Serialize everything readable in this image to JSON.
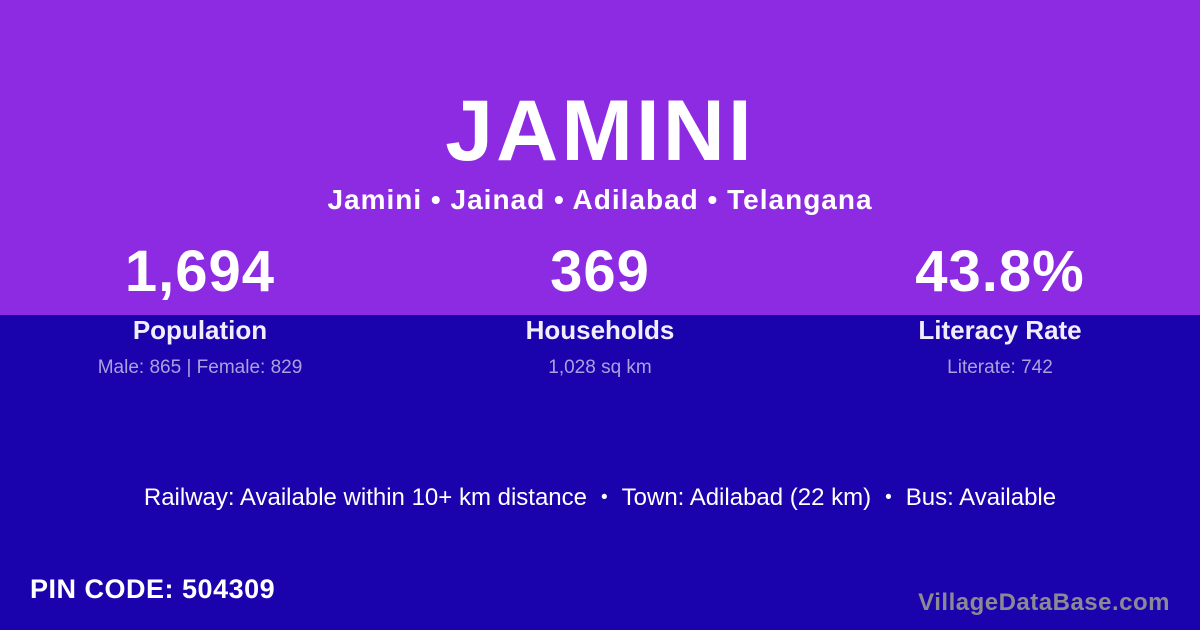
{
  "theme": {
    "top-bg": "#8D2BE2",
    "bottom-bg": "#1A03AD",
    "text-primary": "#FFFFFF",
    "text-muted": "#ABA1DE",
    "brand-color": "#8A8A93"
  },
  "header": {
    "title": "JAMINI",
    "subtitle": "Jamini • Jainad • Adilabad • Telangana"
  },
  "stats": [
    {
      "value": "1,694",
      "label": "Population",
      "sub": "Male: 865 | Female: 829"
    },
    {
      "value": "369",
      "label": "Households",
      "sub": "1,028 sq km"
    },
    {
      "value": "43.8%",
      "label": "Literacy Rate",
      "sub": "Literate: 742"
    }
  ],
  "transport": {
    "railway": "Railway: Available within 10+ km distance",
    "separator": "•",
    "town": "Town: Adilabad (22 km)",
    "bus": "Bus: Available"
  },
  "footer": {
    "pin_prefix": "PIN CODE:",
    "pin_code": "504309",
    "brand": "VillageDataBase.com"
  }
}
